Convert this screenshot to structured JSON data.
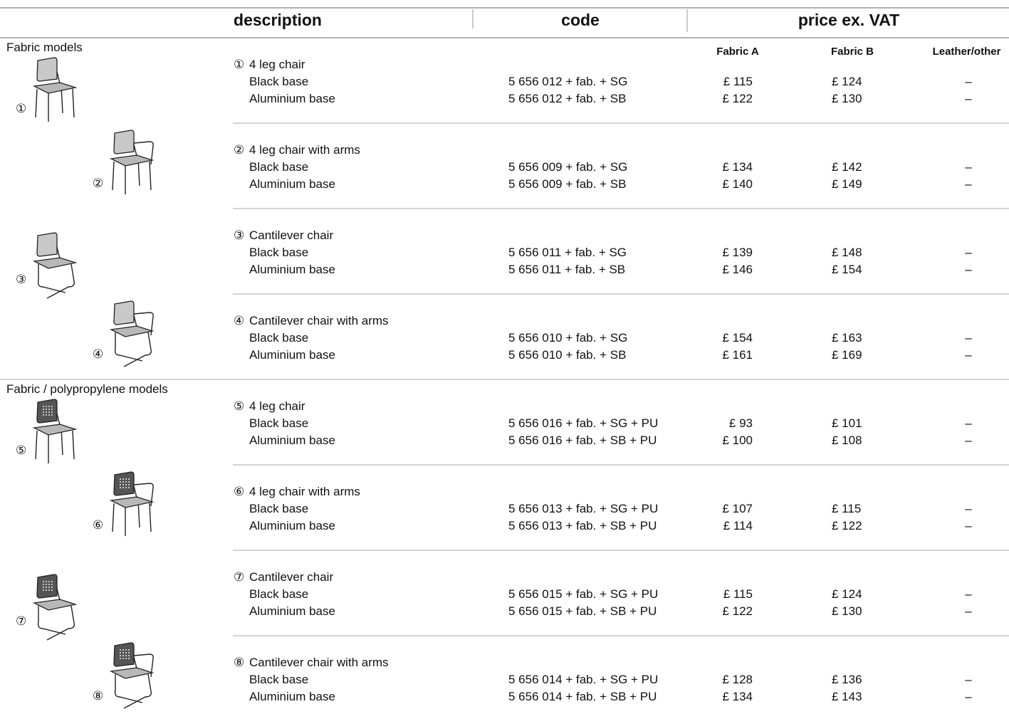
{
  "header": {
    "columns": [
      "description",
      "code",
      "price ex. VAT"
    ],
    "price_columns": [
      "Fabric A",
      "Fabric B",
      "Leather/other"
    ]
  },
  "sections": [
    {
      "title": "Fabric models",
      "items": [
        {
          "marker": "①",
          "name": "4 leg chair",
          "rows": [
            {
              "label": "Black base",
              "code": "5 656 012 + fab. + SG",
              "fabric_a": "£ 115",
              "fabric_b": "£ 124",
              "leather": "–"
            },
            {
              "label": "Aluminium base",
              "code": "5 656 012 + fab. + SB",
              "fabric_a": "£ 122",
              "fabric_b": "£ 130",
              "leather": "–"
            }
          ]
        },
        {
          "marker": "②",
          "name": "4 leg chair with arms",
          "rows": [
            {
              "label": "Black base",
              "code": "5 656 009 + fab. + SG",
              "fabric_a": "£ 134",
              "fabric_b": "£ 142",
              "leather": "–"
            },
            {
              "label": "Aluminium base",
              "code": "5 656 009 + fab. + SB",
              "fabric_a": "£ 140",
              "fabric_b": "£ 149",
              "leather": "–"
            }
          ]
        },
        {
          "marker": "③",
          "name": "Cantilever chair",
          "rows": [
            {
              "label": "Black base",
              "code": "5 656 011 + fab. + SG",
              "fabric_a": "£ 139",
              "fabric_b": "£ 148",
              "leather": "–"
            },
            {
              "label": "Aluminium base",
              "code": "5 656 011 + fab. + SB",
              "fabric_a": "£ 146",
              "fabric_b": "£ 154",
              "leather": "–"
            }
          ]
        },
        {
          "marker": "④",
          "name": "Cantilever chair with arms",
          "rows": [
            {
              "label": "Black base",
              "code": "5 656 010 + fab. + SG",
              "fabric_a": "£ 154",
              "fabric_b": "£ 163",
              "leather": "–"
            },
            {
              "label": "Aluminium base",
              "code": "5 656 010 + fab. + SB",
              "fabric_a": "£ 161",
              "fabric_b": "£ 169",
              "leather": "–"
            }
          ]
        }
      ]
    },
    {
      "title": "Fabric / polypropylene models",
      "items": [
        {
          "marker": "⑤",
          "name": "4 leg chair",
          "rows": [
            {
              "label": "Black base",
              "code": "5 656 016 + fab. + SG + PU",
              "fabric_a": "£ 93",
              "fabric_b": "£ 101",
              "leather": "–"
            },
            {
              "label": "Aluminium base",
              "code": "5 656 016 + fab. + SB + PU",
              "fabric_a": "£ 100",
              "fabric_b": "£ 108",
              "leather": "–"
            }
          ]
        },
        {
          "marker": "⑥",
          "name": "4 leg chair with arms",
          "rows": [
            {
              "label": "Black base",
              "code": "5 656 013 + fab. + SG + PU",
              "fabric_a": "£ 107",
              "fabric_b": "£ 115",
              "leather": "–"
            },
            {
              "label": "Aluminium base",
              "code": "5 656 013 + fab. + SB + PU",
              "fabric_a": "£ 114",
              "fabric_b": "£ 122",
              "leather": "–"
            }
          ]
        },
        {
          "marker": "⑦",
          "name": "Cantilever chair",
          "rows": [
            {
              "label": "Black base",
              "code": "5 656 015 + fab. + SG + PU",
              "fabric_a": "£ 115",
              "fabric_b": "£ 124",
              "leather": "–"
            },
            {
              "label": "Aluminium base",
              "code": "5 656 015 + fab. + SB + PU",
              "fabric_a": "£ 122",
              "fabric_b": "£ 130",
              "leather": "–"
            }
          ]
        },
        {
          "marker": "⑧",
          "name": "Cantilever chair with arms",
          "rows": [
            {
              "label": "Black base",
              "code": "5 656 014 + fab. + SG + PU",
              "fabric_a": "£ 128",
              "fabric_b": "£ 136",
              "leather": "–"
            },
            {
              "label": "Aluminium base",
              "code": "5 656 014 + fab. + SB + PU",
              "fabric_a": "£ 134",
              "fabric_b": "£ 143",
              "leather": "–"
            }
          ]
        }
      ]
    }
  ]
}
